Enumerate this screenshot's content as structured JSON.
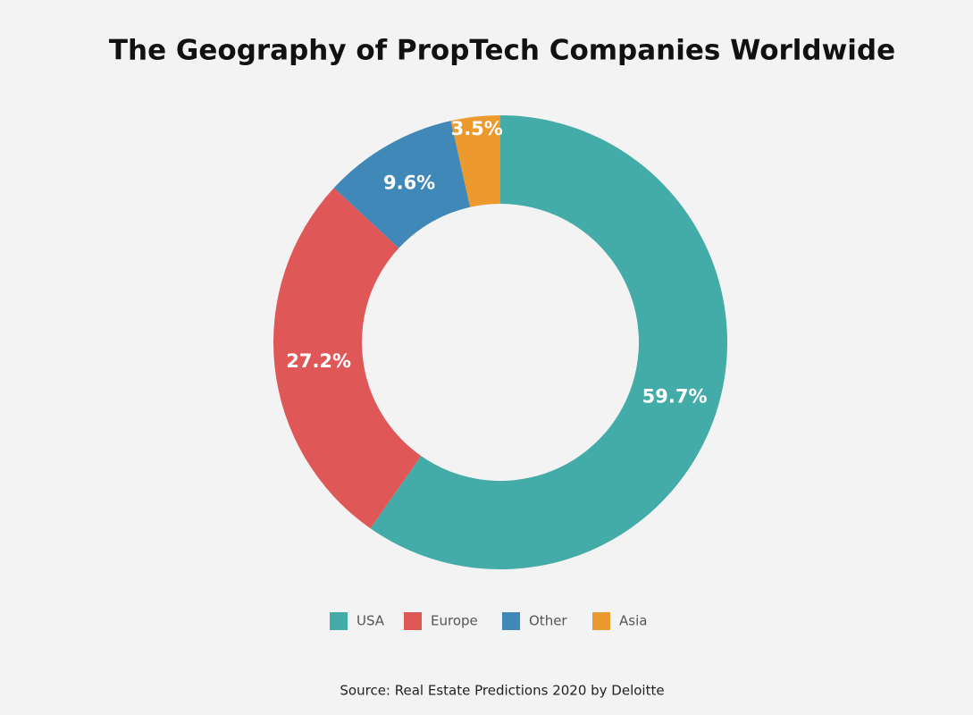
{
  "chart_data": {
    "type": "donut",
    "title": "The Geography of PropTech Companies Worldwide",
    "categories": [
      "USA",
      "Europe",
      "Other",
      "Asia"
    ],
    "values": [
      59.7,
      27.2,
      9.6,
      3.5
    ],
    "value_labels": [
      "59.7%",
      "27.2%",
      "9.6%",
      "3.5%"
    ],
    "colors": [
      "#43aba8",
      "#e05757",
      "#3f88b8",
      "#ec9a2d"
    ],
    "legend": "bottom",
    "source": "Source: Real Estate Predictions 2020 by Deloitte"
  }
}
